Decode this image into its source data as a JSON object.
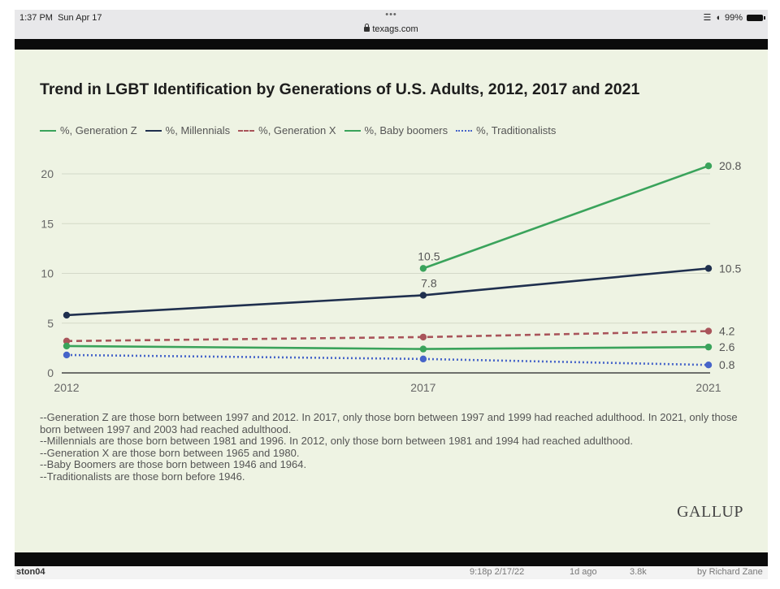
{
  "status_bar": {
    "time": "1:37 PM",
    "date": "Sun Apr 17",
    "dots": "•••",
    "url": "texags.com",
    "battery": "99%"
  },
  "chart": {
    "title": "Trend in LGBT Identification by Generations of U.S. Adults, 2012, 2017 and 2021",
    "legend": [
      {
        "label": "%, Generation Z",
        "color": "#3aa35b",
        "dash": "solid"
      },
      {
        "label": "%, Millennials",
        "color": "#1f2f4e",
        "dash": "solid"
      },
      {
        "label": "%, Generation X",
        "color": "#a9545a",
        "dash": "dashed"
      },
      {
        "label": "%, Baby boomers",
        "color": "#3aa35b",
        "dash": "solid"
      },
      {
        "label": "%, Traditionalists",
        "color": "#4664c9",
        "dash": "dotted"
      }
    ],
    "notes": [
      "--Generation Z are those born between 1997 and 2012. In 2017, only those born between 1997 and 1999 had reached adulthood. In 2021, only those born between 1997 and 2003 had reached adulthood.",
      "--Millennials are those born between 1981 and 1996. In 2012, only those born between 1981 and 1994 had reached adulthood.",
      "--Generation X are those born between 1965 and 1980.",
      "--Baby Boomers are those born between 1946 and 1964.",
      "--Traditionalists are those born before 1946."
    ],
    "source_logo": "GALLUP"
  },
  "bottom_strip": {
    "left": "ston04",
    "mid": "9:18p 2/17/22",
    "ago": "1d ago",
    "views": "3.8k",
    "by": "by Richard Zane"
  },
  "chart_data": {
    "type": "line",
    "title": "Trend in LGBT Identification by Generations of U.S. Adults, 2012, 2017 and 2021",
    "x": [
      "2012",
      "2017",
      "2021"
    ],
    "x_numeric": [
      2012,
      2017,
      2021
    ],
    "ylim": [
      0,
      22
    ],
    "yticks": [
      0,
      5,
      10,
      15,
      20
    ],
    "grid": true,
    "legend_position": "top",
    "series": [
      {
        "name": "%, Generation Z",
        "color": "#3aa35b",
        "dash": "solid",
        "points": [
          [
            2017,
            10.5
          ],
          [
            2021,
            20.8
          ]
        ],
        "labels": {
          "2017": "10.5",
          "2021": "20.8"
        }
      },
      {
        "name": "%, Millennials",
        "color": "#1f2f4e",
        "dash": "solid",
        "points": [
          [
            2012,
            5.8
          ],
          [
            2017,
            7.8
          ],
          [
            2021,
            10.5
          ]
        ],
        "labels": {
          "2017": "7.8",
          "2021": "10.5"
        }
      },
      {
        "name": "%, Generation X",
        "color": "#a9545a",
        "dash": "dashed",
        "points": [
          [
            2012,
            3.2
          ],
          [
            2017,
            3.6
          ],
          [
            2021,
            4.2
          ]
        ],
        "labels": {
          "2021": "4.2"
        }
      },
      {
        "name": "%, Baby boomers",
        "color": "#3aa35b",
        "dash": "solid",
        "points": [
          [
            2012,
            2.7
          ],
          [
            2017,
            2.4
          ],
          [
            2021,
            2.6
          ]
        ],
        "labels": {
          "2021": "2.6"
        }
      },
      {
        "name": "%, Traditionalists",
        "color": "#4664c9",
        "dash": "dotted",
        "points": [
          [
            2012,
            1.8
          ],
          [
            2017,
            1.4
          ],
          [
            2021,
            0.8
          ]
        ],
        "labels": {
          "2021": "0.8"
        }
      }
    ]
  }
}
